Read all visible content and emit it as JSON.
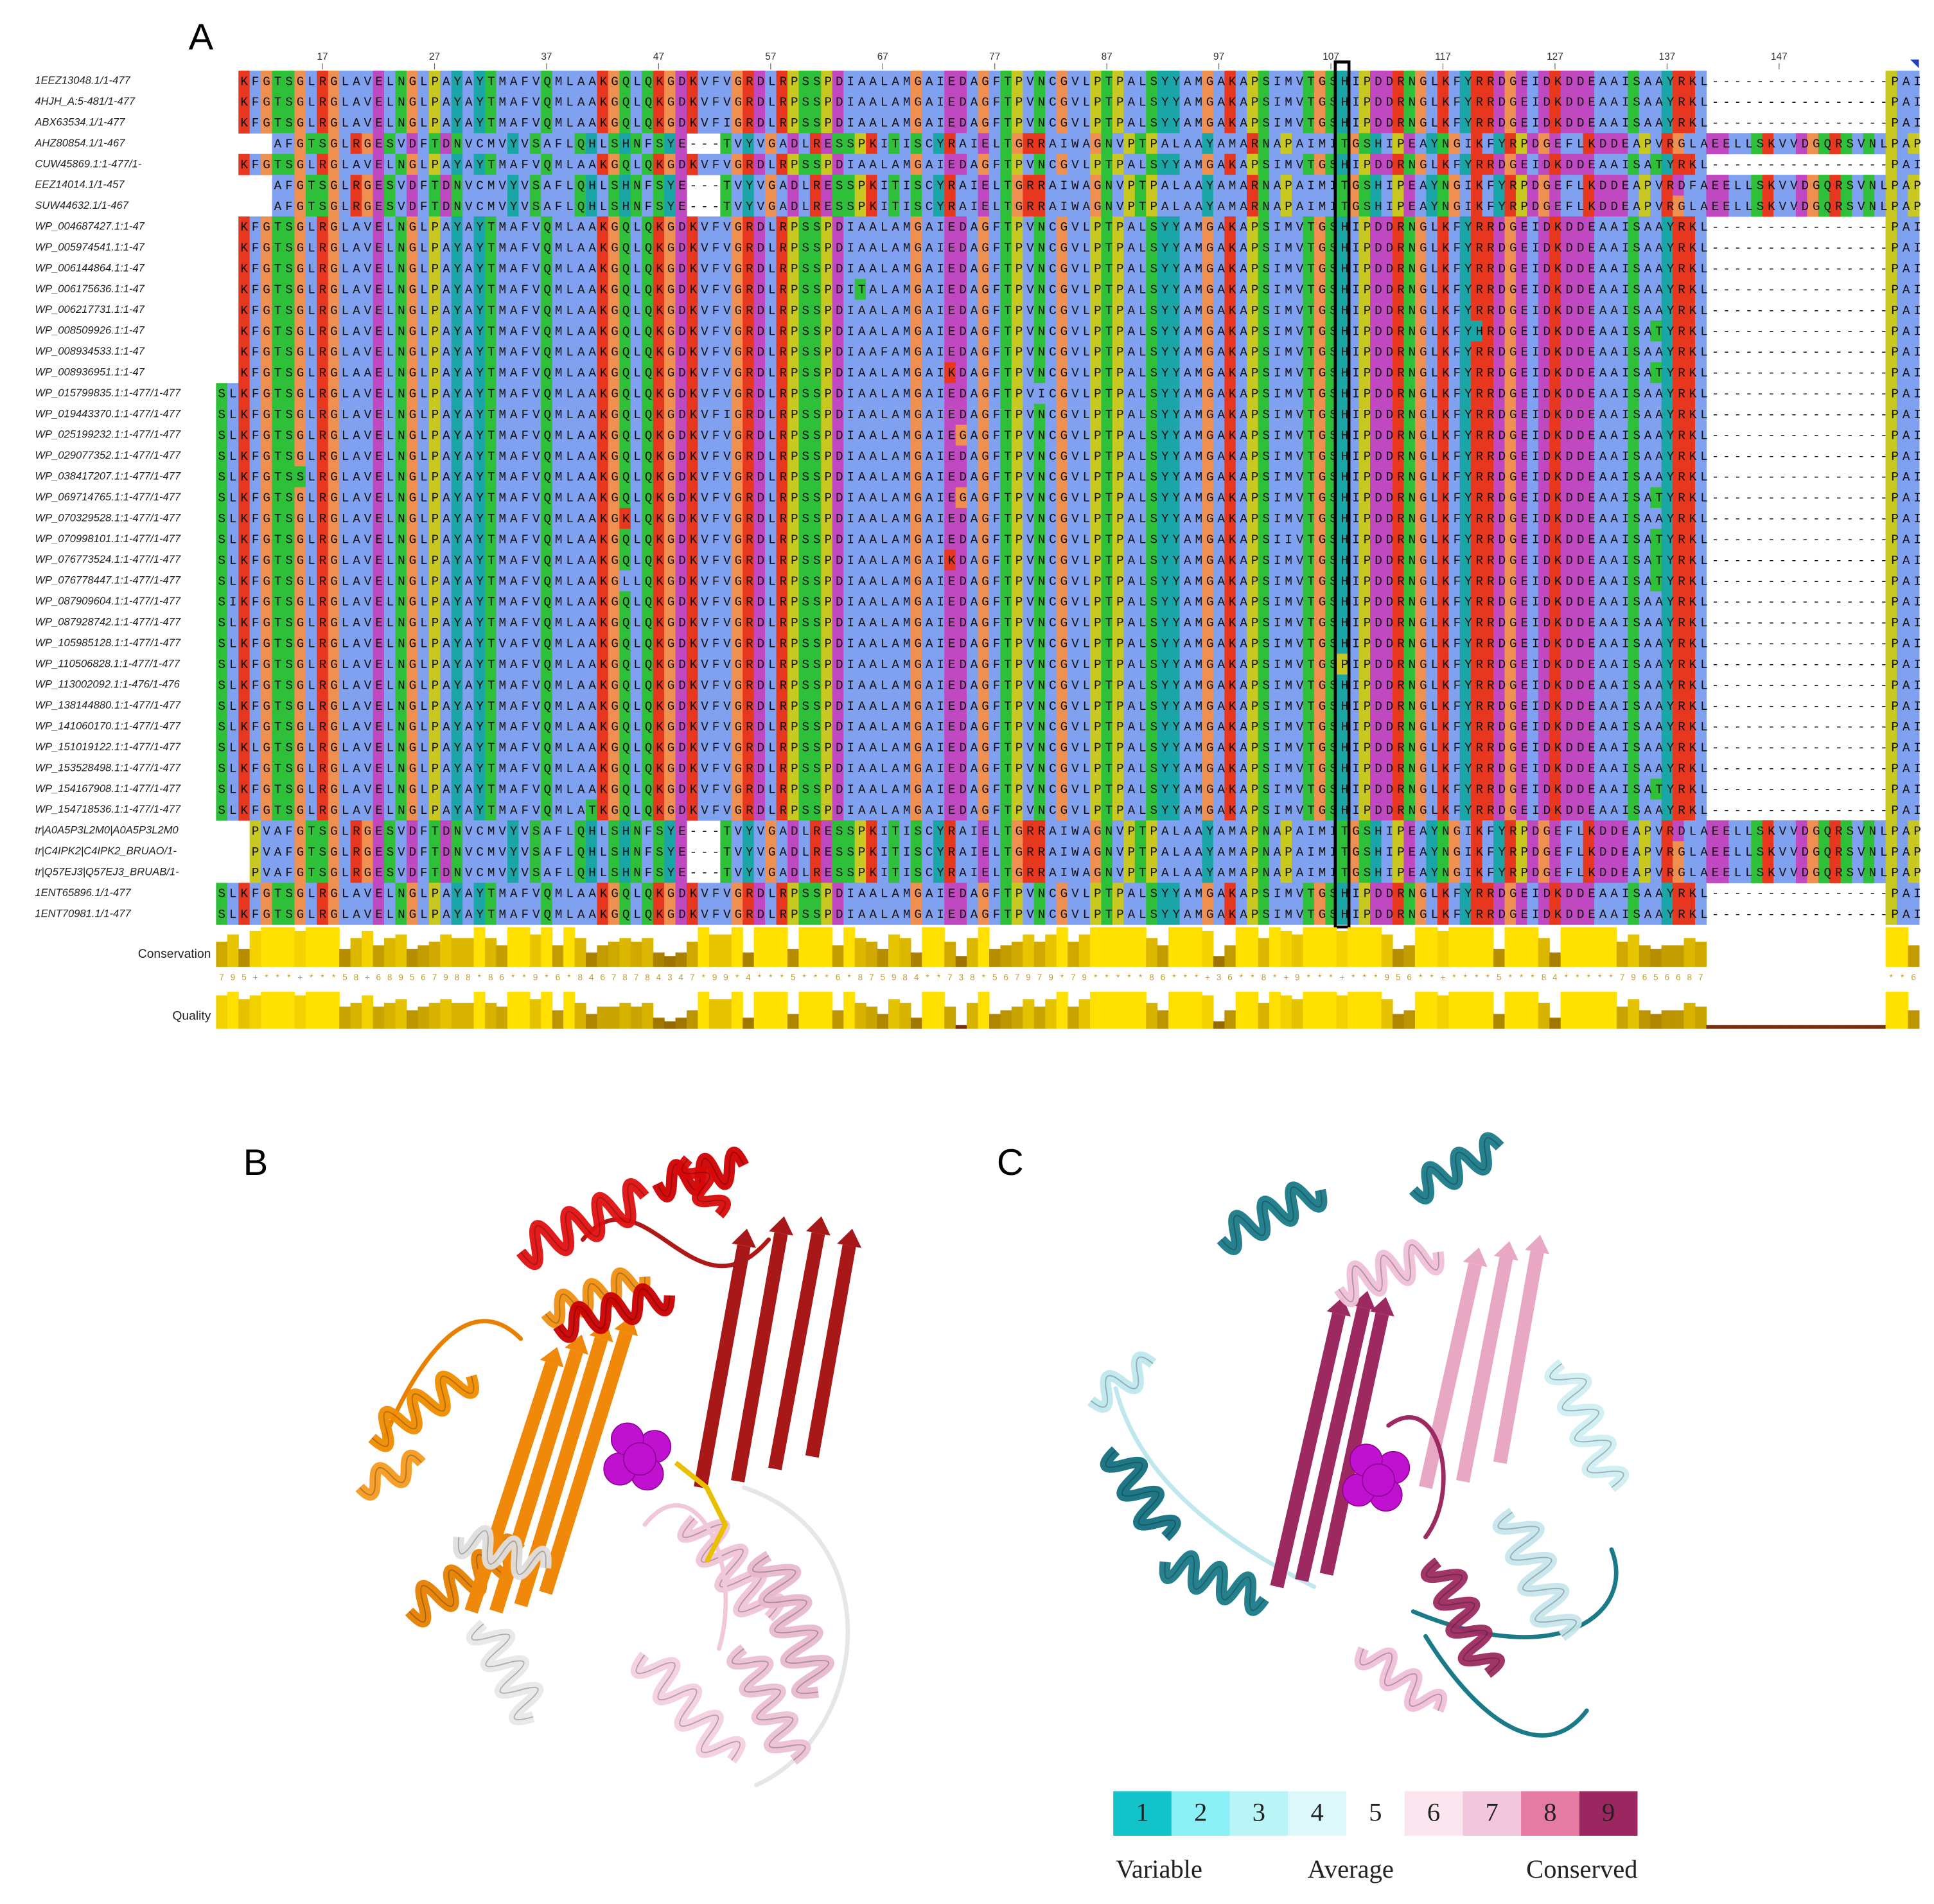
{
  "panels": {
    "a": {
      "label": "A",
      "column_ticks": [
        17,
        27,
        37,
        47,
        57,
        67,
        77,
        87,
        97,
        107,
        117,
        127,
        137,
        147
      ],
      "rows": [
        {
          "name": "1EEZ13048.1/1-477",
          "sequence": "KFGTSGLRGLAVELNGLPAYAYTMAFVQMLAAKGQLQKGDKVFVGRDLRPSSPDIAALAMGAIEDAGFTPVNCGVLPTPALSYYAMGAKAPSIMVTGSHIPDDRNGLKFYRRDGEIDKDDEAAISAAYRKL----------------PAI"
        },
        {
          "name": "4HJH_A:5-481/1-477",
          "sequence": "KFGTSGLRGLAVELNGLPAYAYTMAFVQMLAAKGQLQKGDKVFVGRDLRPSSPDIAALAMGAIEDAGFTPVNCGVLPTPALSYYAMGAKAPSIMVTGSHIPDDRNGLKFYRRDGEIDKDDEAAISAAYRKL----------------PAI"
        },
        {
          "name": "ABX63534.1/1-477",
          "sequence": "KFGTSGLRGLAVELNGLPAYAYTMAFVQMLAAKGQLQKGDKVFIGRDLRPSSPDIAALAMGAIEDAGFTPVNCGVLPTPALSYYAMGAKAPSIMVTGSHIPDDRNGLKFYRRDGEIDKDDEAAISAAYRKL----------------PAI"
        },
        {
          "name": "AHZ80854.1/1-467",
          "sequence": "AFGTSGLRGESVDFTDNVCMVYVSAFLQHLSHNFSYE---TVYVGADLRESSPKITISCYRAIELTGRRAIWAGNVPTPALAAYAMARNAPAIMITGSHIPEAYNGIKFYRPDGEFLKDDEAPVRGLAEELLSKVVDGQRSVNLPAP"
        },
        {
          "name": "CUW45869.1:1-477/1-",
          "sequence": "KFGTSGLRGLAVELNGLPAYAYTMAFVQMLAAKGQLQKGDKVFVGRDLRPSSPDIAALAMGAIEDAGFTPVNCGVLPTPALSYYAMGAKAPSIMVTGSHIPDDRNGLKFYRRDGEIDKDDEAAISATYRKL----------------PAI"
        },
        {
          "name": "EEZ14014.1/1-457",
          "sequence": "AFGTSGLRGESVDFTDNVCMVYVSAFLQHLSHNFSYE---TVYVGADLRESSPKITISCYRAIELTGRRAIWAGNVPTPALAAYAMARNAPAIMITGSHIPEAYNGIKFYRPDGEFLKDDEAPVRDFAEELLSKVVDGQRSVNLPAP"
        },
        {
          "name": "SUW44632.1/1-467",
          "sequence": "AFGTSGLRGESVDFTDNVCMVYVSAFLQHLSHNFSYE---TVYVGADLRESSPKITISCYRAIELTGRRAIWAGNVPTPALAAYAMARNAPAIMITGSHIPEAYNGIKFYRPDGEFLKDDEAPVRGLAEELLSKVVDGQRSVNLPAP"
        },
        {
          "name": "WP_004687427.1:1-47",
          "sequence": "KFGTSGLRGLAVELNGLPAYAYTMAFVQMLAAKGQLQKGDKVFVGRDLRPSSPDIAALAMGAIEDAGFTPVNCGVLPTPALSYYAMGAKAPSIMVTGSHIPDDRNGLKFYRRDGEIDKDDEAAISAAYRKL----------------PAI"
        },
        {
          "name": "WP_005974541.1:1-47",
          "sequence": "KFGTSGLRGLAVELNGLPAYAYTMAFVQMLAAKGQLQKGDKVFVGRDLRPSSPDIAALAMGAIEDAGFTPVNCGVLPTPALSYYAMGAKAPSIMVTGSHIPDDRNGLKFYRRDGEIDKDDEAAISAAYRKL----------------PAI"
        },
        {
          "name": "WP_006144864.1:1-47",
          "sequence": "KFGTSGLRGLAVELNGLPAYAYTMAFVQMLAAKGQLQKGDKVFVGRDLRPSSPDIAALAMGAIEDAGFTPVNCGVLPTPALSYYAMGAKAPSIMVTGSHIPDDRNGLKFYRRDGEIDKDDEAAISAAYRKL----------------PAI"
        },
        {
          "name": "WP_006175636.1:1-47",
          "sequence": "KFGTSGLRGLAVELNGLPAYAYTMAFVQMLAAKGQLQKGDKVFVGRDLRPSSPDITALAMGAIEDAGFTPVNCGVLPTPALSYYAMGAKAPSIMVTGSHIPDDRNGLKFYRRDGEIDKDDEAAISAAYRKL----------------PAI"
        },
        {
          "name": "WP_006217731.1:1-47",
          "sequence": "KFGTSGLRGLAVELNGLPAYAYTMAFVQMLAAKGQLQKGDKVFVGRDLRPSSPDIAALAMGAIEDAGFTPVNCGVLPTPALSYYAMGAKAPSIMVTGSHIPDDRNGLKFYRRDGEIDKDDEAAISAAYRKL----------------PAI"
        },
        {
          "name": "WP_008509926.1:1-47",
          "sequence": "KFGTSGLRGLAVELNGLPAYAYTMAFVQMLAAKGQLQKGDKVFVGRDLRPSSPDIAALAMGAIEDAGFTPVNCGVLPTPALSYYAMGAKAPSIMVTGSHIPDDRNGLKFYHRDGEIDKDDEAAISATYRKL----------------PAI"
        },
        {
          "name": "WP_008934533.1:1-47",
          "sequence": "KFGTSGLRGLAVELNGLPAYAYTMAFVQMLAAKGQLQKGDKVFVGRDLRPSSPDIAAFAMGAIEDAGFTPVNCGVLPTPALSYYAMGAKAPSIMVTGSHIPDDRNGLKFYRRDGEIDKDDEAAISAAYRKL----------------PAI"
        },
        {
          "name": "WP_008936951.1:1-47",
          "sequence": "KFGTSGLRGLAAELNGLPAYAYTMAFVQMLAAKGQLQKGDKVFVGRDLRPSSPDIAALAMGAIKDAGFTPVNCGVLPTPALSYYAMGAKAPSIMVTGSHIPDDRNGLKFYRRDGEIDKDDEAAISATYRKL----------------PAI"
        },
        {
          "name": "WP_015799835.1:1-477/1-477",
          "sequence": "SLKFGTSGLRGLAVELNGLPAYAYTMAFVQMLAAKGQLQKGDKVFVGRDLRPSSPDIAALAMGAIEDAGFTPVICGVLPTPALSYYAMGAKAPSIMVTGSHIPDDRNGLKFYRRDGEIDKDDEAAISAAYRKL----------------PAI"
        },
        {
          "name": "WP_019443370.1:1-477/1-477",
          "sequence": "SLKFGTSGLRGLAVELNGLPAYAYTMAFVQMLAAKGQLQKGDKVFIGRDLRPSSPDIAALAMGAIEDAGFTPVNCGVLPTPALSYYAMGAKAPSIMVTGSHIPDDRNGLKFYRRDGEIDKDDEAAISAAYRKL----------------PAI"
        },
        {
          "name": "WP_025199232.1:1-477/1-477",
          "sequence": "SLKFGTSGLRGLAVELNGLPAYAYTMAFVQMLAAKGQLQKGDKVFVGRDLRPSSPDIAALAMGAIEGAGFTPVNCGVLPTPALSYYAMGAKAPSIMVTGSHIPDDRNGLKFYRRDGEIDKDDEAAISAAYRKL----------------PAI"
        },
        {
          "name": "WP_029077352.1:1-477/1-477",
          "sequence": "SLKFGTSGLRGLAVELNGLPAYAYTMAFVQMLAAKGQLQKGDKVFVGRDLRPSSPDIAALAMGAIEDAGFTPVNCGVLPTPALSYYAMGAKAPSIMVTGSHIPDDRNGLKFYRRDGEIDKDDEAAISAAYRKL----------------PAI"
        },
        {
          "name": "WP_038417207.1:1-477/1-477",
          "sequence": "SLKFGTSSLRGLAVELNGLPAYAYTMAFVQMLAAKGQLQKGDKVFVGRDLRPSSPDIAALAMGAIEDAGFTPVNCGVLPTPALSYYAMGAKAPSIMVTGSHIPDDRNGLKFYRRDGEIDKDDEAAISAAYRKL----------------PAI"
        },
        {
          "name": "WP_069714765.1:1-477/1-477",
          "sequence": "SLKFGTSGLRGLAVELNGLPAYAYTMAFVQMLAAKGQLQKGDKVFVGRDLRPSSPDIAALAMGAIEGAGFTPVNCGVLPTPALSYYAMGAKAPSIMVTGSHIPDDRNGLKFYRRDGEIDKDDEAAISATYRKL----------------PAI"
        },
        {
          "name": "WP_070329528.1:1-477/1-477",
          "sequence": "SLKFGTSGLRGLAVELNGLPAYAYTMAFVQMLAAKGKLQKGDKVFVGRDLRPSSPDIAALAMGAIEDAGFTPVNCGVLPTPALSYYAMGAKAPSIMVTGSHIPDDRNGLKFYRRDGEIDKDDEAAISAAYRKL----------------PAI"
        },
        {
          "name": "WP_070998101.1:1-477/1-477",
          "sequence": "SLKFGTSGLRGLAVELNGLPAYAYTMAFVQMLAAKGQLQKGDKVFVGRDLRPSSPDIAALAMGAIEDAGFTPVNCGVLPTPALSYYAMGAKAPSIIVTGSHIPDDRNGLKFYRRDGEIDKDDEAAISATYRKL----------------PAI"
        },
        {
          "name": "WP_076773524.1:1-477/1-477",
          "sequence": "SLKFGTSGLRGLAVELNGLPAYAYTMAFVQMLAAKGQLQKGDKVFVGRDLRPSSPDIAALAMGAIKDAGFTPVNCGVLPTPALSYYAMGAKAPSIMVTGSHIPDDRNGLKFYRRDGEIDKDDEAAISATYRKL----------------PAI"
        },
        {
          "name": "WP_076778447.1:1-477/1-477",
          "sequence": "SLKFGTSGLRGLAVELNGLPAYAYTMAFVQMLAAKGLLQKGDKVFVGRDLRPSSPDIAALAMGAIEDAGFTPVNCGVLPTPALSYYAMGAKAPSIMVTGSHIPDDRNGLKFYRRDGEIDKDDEAAISATYRKL----------------PAI"
        },
        {
          "name": "WP_087909604.1:1-477/1-477",
          "sequence": "SIKFGTSGLRGLAVELNGLPAYAYTMAFVQMLAAKGQLQKGDKVFVGRDLRPSSPDIAALAMGAIEDAGFTPVNCGVLPTPALSYYAMGAKAPSIMVTGSHIPDDRNGLKFYRRDGEIDKDDEAAISAAYRKL----------------PAI"
        },
        {
          "name": "WP_087928742.1:1-477/1-477",
          "sequence": "SLKFGTSGLRGLAVELNGLPAYAYTMAFVQMLAAKGQLQKGDKVFVGRDLRPSSPDIAALAMGAIEDAGFTPVNCGVLPTPALSYYAMGAKAPSIMVTGSHIPDDRNGLKFYRRDGEIDKDDEAAISAAYRKL----------------PAI"
        },
        {
          "name": "WP_105985128.1:1-477/1-477",
          "sequence": "SLKFGTSGLRGLAVELNGLPAYAYTVAFVQMLAAKGQLQKGDKVFVGRDLRPSSPDIAALAMGAIEDAGFTPVNCGVLPTPALSYYAMGAKAPSIMVTGSHIPDDRNGLKFYRRDGEIDKDDEAAISAAYRKL----------------PAI"
        },
        {
          "name": "WP_110506828.1:1-477/1-477",
          "sequence": "SLKFGTSGLRGLAVELNGLPAYAYTMAFVQMLAAKGQLQKGDKVFVGRDLRPSSPDIAALAMGAIEDAGFTPVNCGVLPTPALSYYAMGAKAPSIMVTGSPIPDDRNGLKFYRRDGEIDKDDEAAISAAYRKL----------------PAI"
        },
        {
          "name": "WP_113002092.1:1-476/1-476",
          "sequence": "SLKFGTSGLRGLAVELNGLPAYAYTMAFVQMLAAKGQLQKGDKVFVGRDLRPSSPDIAALAMGAIEDAGFTPVNCGVLPTPALSYYAMGAKAPSIMVTGSHIPDDRNGLKFYRRDGEIDKDDEAAISAAYRKL----------------PAI"
        },
        {
          "name": "WP_138144880.1:1-477/1-477",
          "sequence": "SLKFGTSGLRGLAVELNGLPAYAYTMAFVQMLAAKGQLQKGDKVFVGRDLRPSSPDIAALAMGAIEDAGFTPVNCGVLPTPALSYYAMGAKAPSIMVTGSHIPDDRNGLKFYRRDGEIDKDDEAAISAAYRKL----------------PAI"
        },
        {
          "name": "WP_141060170.1:1-477/1-477",
          "sequence": "SLKFGTSGLRGLAVELNGLPAYAYTMAFVQMLAAKGQLQKGDKVFVGRDLRPSSPDIAALAMGAIEDAGFTPVNCGVLPTPALSYYAMGAKAPSIMVTGSHIPDDRNGLKFYRRDGEIDKDDEAAISAAYRKL----------------PAI"
        },
        {
          "name": "WP_151019122.1:1-477/1-477",
          "sequence": "SLKLGTSGLRGLAVELNGLPAYAYTMAFVQMLAAKGQLQKGDKVFVGRDLRPSSPDIAALAMGAIEDAGFTPVNCGVLPTPALSYYAMGAKAPSIMVTGSHIPDDRNGLKFYRRDGEIDKDDEAAISAAYRKL----------------PAI"
        },
        {
          "name": "WP_153528498.1:1-477/1-477",
          "sequence": "SLKFGTSGLRGLAVELNGLPAYAYTMAFVQMLAAKGQLQKGDKVFVGRDLRPSSPDIAALAMGAIEDAGFTPVNCGVLPTPALSYYAMGAKAPSIMVTGSHIPDDRNGLKFYRRDGEIDKDDEAAISAAYRKL----------------PAI"
        },
        {
          "name": "WP_154167908.1:1-477/1-477",
          "sequence": "SLKFGTSGLRGLAVELNGLPAYAYTMAFVQMLAAKGQLQKGDKVFVGRDLRPSSPDIAALAMGAIEDAGFTPVNCGVLPTPALSYYAMGAKAPSIMVTGSHIPDDRNGLKFYRRDGEIDKDDEAAISATYRKL----------------PAI"
        },
        {
          "name": "WP_154718536.1:1-477/1-477",
          "sequence": "SLKFGTSGLRGLAVELNGLPAYAYTMAFVQMLATKGQLQKGDKVFVGRDLRPSSPDIAALAMGAIEDAGFTPVNCGVLPTPALSYYAMGAKAPSIMVTGSHIPDDRNGLKFYRRDGEIDKDDEAAISAAYRKL----------------PAI"
        },
        {
          "name": "tr|A0A5P3L2M0|A0A5P3L2M0",
          "sequence": "PVAFGTSGLRGESVDFTDNVCMVYVSAFLQHLSHNFSYE---TVYVGADLRESSPKITISCYRAIELTGRRAIWAGNVPTPALAAYAMAPNAPAIMITGSHIPEAYNGIKFYRPDGEFLKDDEAPVRDLAEELLSKVVDGQRSVNLPAP"
        },
        {
          "name": "tr|C4IPK2|C4IPK2_BRUAO/1-",
          "sequence": "PVAFGTSGLRGESVDFTDNVCMVYVSAFLQHLSHNFSYE---TVYVGADLRESSPKITISCYRAIELTGRRAIWAGNVPTPALAAYAMAPNAPAIMITGSHIPEAYNGIKFYRPDGEFLKDDEAPVRGLAEELLSKVVDGQRSVNLPAP"
        },
        {
          "name": "tr|Q57EJ3|Q57EJ3_BRUAB/1-",
          "sequence": "PVAFGTSGLRGESVDFTDNVCMVYVSAFLQHLSHNFSYE---TVYVGADLRESSPKITISCYRAIELTGRRAIWAGNVPTPALAAYAMAPNAPAIMITGSHIPEAYNGIKFYRPDGEFLKDDEAPVRGLAEELLSKVVDGQRSVNLPAP"
        },
        {
          "name": "1ENT65896.1/1-477",
          "sequence": "SLKFGTSGLRGLAVELNGLPAYAYTMAFVQMLAAKGQLQKGDKVFVGRDLRPSSPDIAALAMGAIEDAGFTPVNCGVLPTPALSYYAMGAKAPSIMVTGSHIPDDRNGLKFYRRDGEIDKDDEAAISAAYRKL----------------PAI"
        },
        {
          "name": "1ENT70981.1/1-477",
          "sequence": "SLKFGTSGLRGLAVELNGLPAYAYTMAFVQMLAAKGQLQKGDKVFVGRDLRPSSPDIAALAMGAIEDAGFTPVNCGVLPTPALSYYAMGAKAPSIMVTGSHIPDDRNGLKFYRRDGEIDKDDEAAISAAYRKL----------------PAI"
        }
      ],
      "conservation": {
        "label": "Conservation",
        "ylim": [
          0,
          11
        ],
        "values": [
          7,
          9,
          5,
          10,
          11,
          11,
          11,
          10,
          11,
          11,
          11,
          5,
          8,
          10,
          6,
          8,
          9,
          5,
          6,
          7,
          9,
          8,
          8,
          11,
          8,
          6,
          11,
          11,
          9,
          11,
          6,
          11,
          8,
          4,
          6,
          7,
          8,
          7,
          8,
          4,
          3,
          4,
          7,
          11,
          9,
          9,
          11,
          4,
          11,
          11,
          11,
          5,
          11,
          11,
          11,
          6,
          11,
          8,
          7,
          5,
          9,
          8,
          4,
          11,
          11,
          7,
          3,
          8,
          11,
          5,
          6,
          7,
          9,
          7,
          9,
          11,
          7,
          9,
          11,
          11,
          11,
          11,
          11,
          8,
          6,
          11,
          11,
          11,
          10,
          3,
          6,
          11,
          11,
          8,
          11,
          10,
          9,
          11,
          11,
          11,
          10,
          11,
          11,
          11,
          9,
          5,
          6,
          11,
          11,
          10,
          11,
          11,
          11,
          11,
          5,
          11,
          11,
          11,
          8,
          4,
          11,
          11,
          11,
          11,
          11,
          7,
          9,
          6,
          5,
          6,
          6,
          8,
          7,
          0,
          0,
          0,
          0,
          0,
          0,
          0,
          0,
          0,
          0,
          0,
          0,
          0,
          0,
          0,
          0,
          11,
          11,
          6
        ],
        "value_labels": [
          "7",
          "9",
          "5",
          "+",
          "*",
          "*",
          "*",
          "+",
          "*",
          "*",
          "*",
          "5",
          "8",
          "+",
          "6",
          "8",
          "9",
          "5",
          "6",
          "7",
          "9",
          "8",
          "8",
          "*",
          "8",
          "6",
          "*",
          "*",
          "9",
          "*",
          "6",
          "*",
          "8",
          "4",
          "6",
          "7",
          "8",
          "7",
          "8",
          "4",
          "3",
          "4",
          "7",
          "*",
          "9",
          "9",
          "*",
          "4",
          "*",
          "*",
          "*",
          "5",
          "*",
          "*",
          "*",
          "6",
          "*",
          "8",
          "7",
          "5",
          "9",
          "8",
          "4",
          "*",
          "*",
          "7",
          "3",
          "8",
          "*",
          "5",
          "6",
          "7",
          "9",
          "7",
          "9",
          "*",
          "7",
          "9",
          "*",
          "*",
          "*",
          "*",
          "*",
          "8",
          "6",
          "*",
          "*",
          "*",
          "+",
          "3",
          "6",
          "*",
          "*",
          "8",
          "*",
          "+",
          "9",
          "*",
          "*",
          "*",
          "+",
          "*",
          "*",
          "*",
          "9",
          "5",
          "6",
          "*",
          "*",
          "+",
          "*",
          "*",
          "*",
          "*",
          "5",
          "*",
          "*",
          "*",
          "8",
          "4",
          "*",
          "*",
          "*",
          "*",
          "*",
          "7",
          "9",
          "6",
          "5",
          "6",
          "6",
          "8",
          "7",
          null,
          null,
          null,
          null,
          null,
          null,
          null,
          null,
          null,
          null,
          null,
          null,
          null,
          null,
          null,
          null,
          "*",
          "*",
          "6"
        ]
      },
      "quality": {
        "label": "Quality",
        "ylim": [
          0,
          10
        ],
        "values": [
          9,
          10,
          8,
          9,
          10,
          10,
          10,
          9,
          10,
          10,
          10,
          6,
          7,
          9,
          6,
          7,
          8,
          5,
          6,
          7,
          8,
          7,
          7,
          10,
          7,
          6,
          10,
          10,
          8,
          10,
          5,
          10,
          7,
          4,
          6,
          6,
          7,
          6,
          7,
          3,
          2,
          3,
          5,
          10,
          8,
          8,
          10,
          3,
          10,
          10,
          10,
          4,
          10,
          10,
          10,
          5,
          10,
          7,
          6,
          4,
          8,
          7,
          3,
          10,
          10,
          6,
          1,
          7,
          10,
          4,
          5,
          6,
          8,
          6,
          8,
          10,
          6,
          8,
          10,
          10,
          10,
          10,
          10,
          7,
          5,
          10,
          10,
          10,
          9,
          2,
          5,
          10,
          10,
          7,
          10,
          9,
          8,
          10,
          10,
          10,
          9,
          10,
          10,
          10,
          8,
          4,
          5,
          10,
          10,
          9,
          10,
          10,
          10,
          10,
          4,
          10,
          10,
          10,
          7,
          3,
          10,
          10,
          10,
          10,
          10,
          6,
          8,
          5,
          4,
          5,
          5,
          7,
          6,
          1,
          1,
          1,
          1,
          1,
          1,
          1,
          1,
          1,
          1,
          1,
          1,
          1,
          1,
          1,
          1,
          10,
          10,
          5
        ]
      }
    },
    "b": {
      "label": "B"
    },
    "c": {
      "label": "C",
      "legend": {
        "scores": [
          1,
          2,
          3,
          4,
          5,
          6,
          7,
          8,
          9
        ],
        "colors": [
          "#12c3c9",
          "#8af0f5",
          "#b9f4f7",
          "#dcf8fa",
          "#ffffff",
          "#fbe6ef",
          "#f2c6dc",
          "#e57aa3",
          "#9c2660"
        ],
        "labels": [
          "Variable",
          "Average",
          "Conserved"
        ]
      }
    }
  }
}
